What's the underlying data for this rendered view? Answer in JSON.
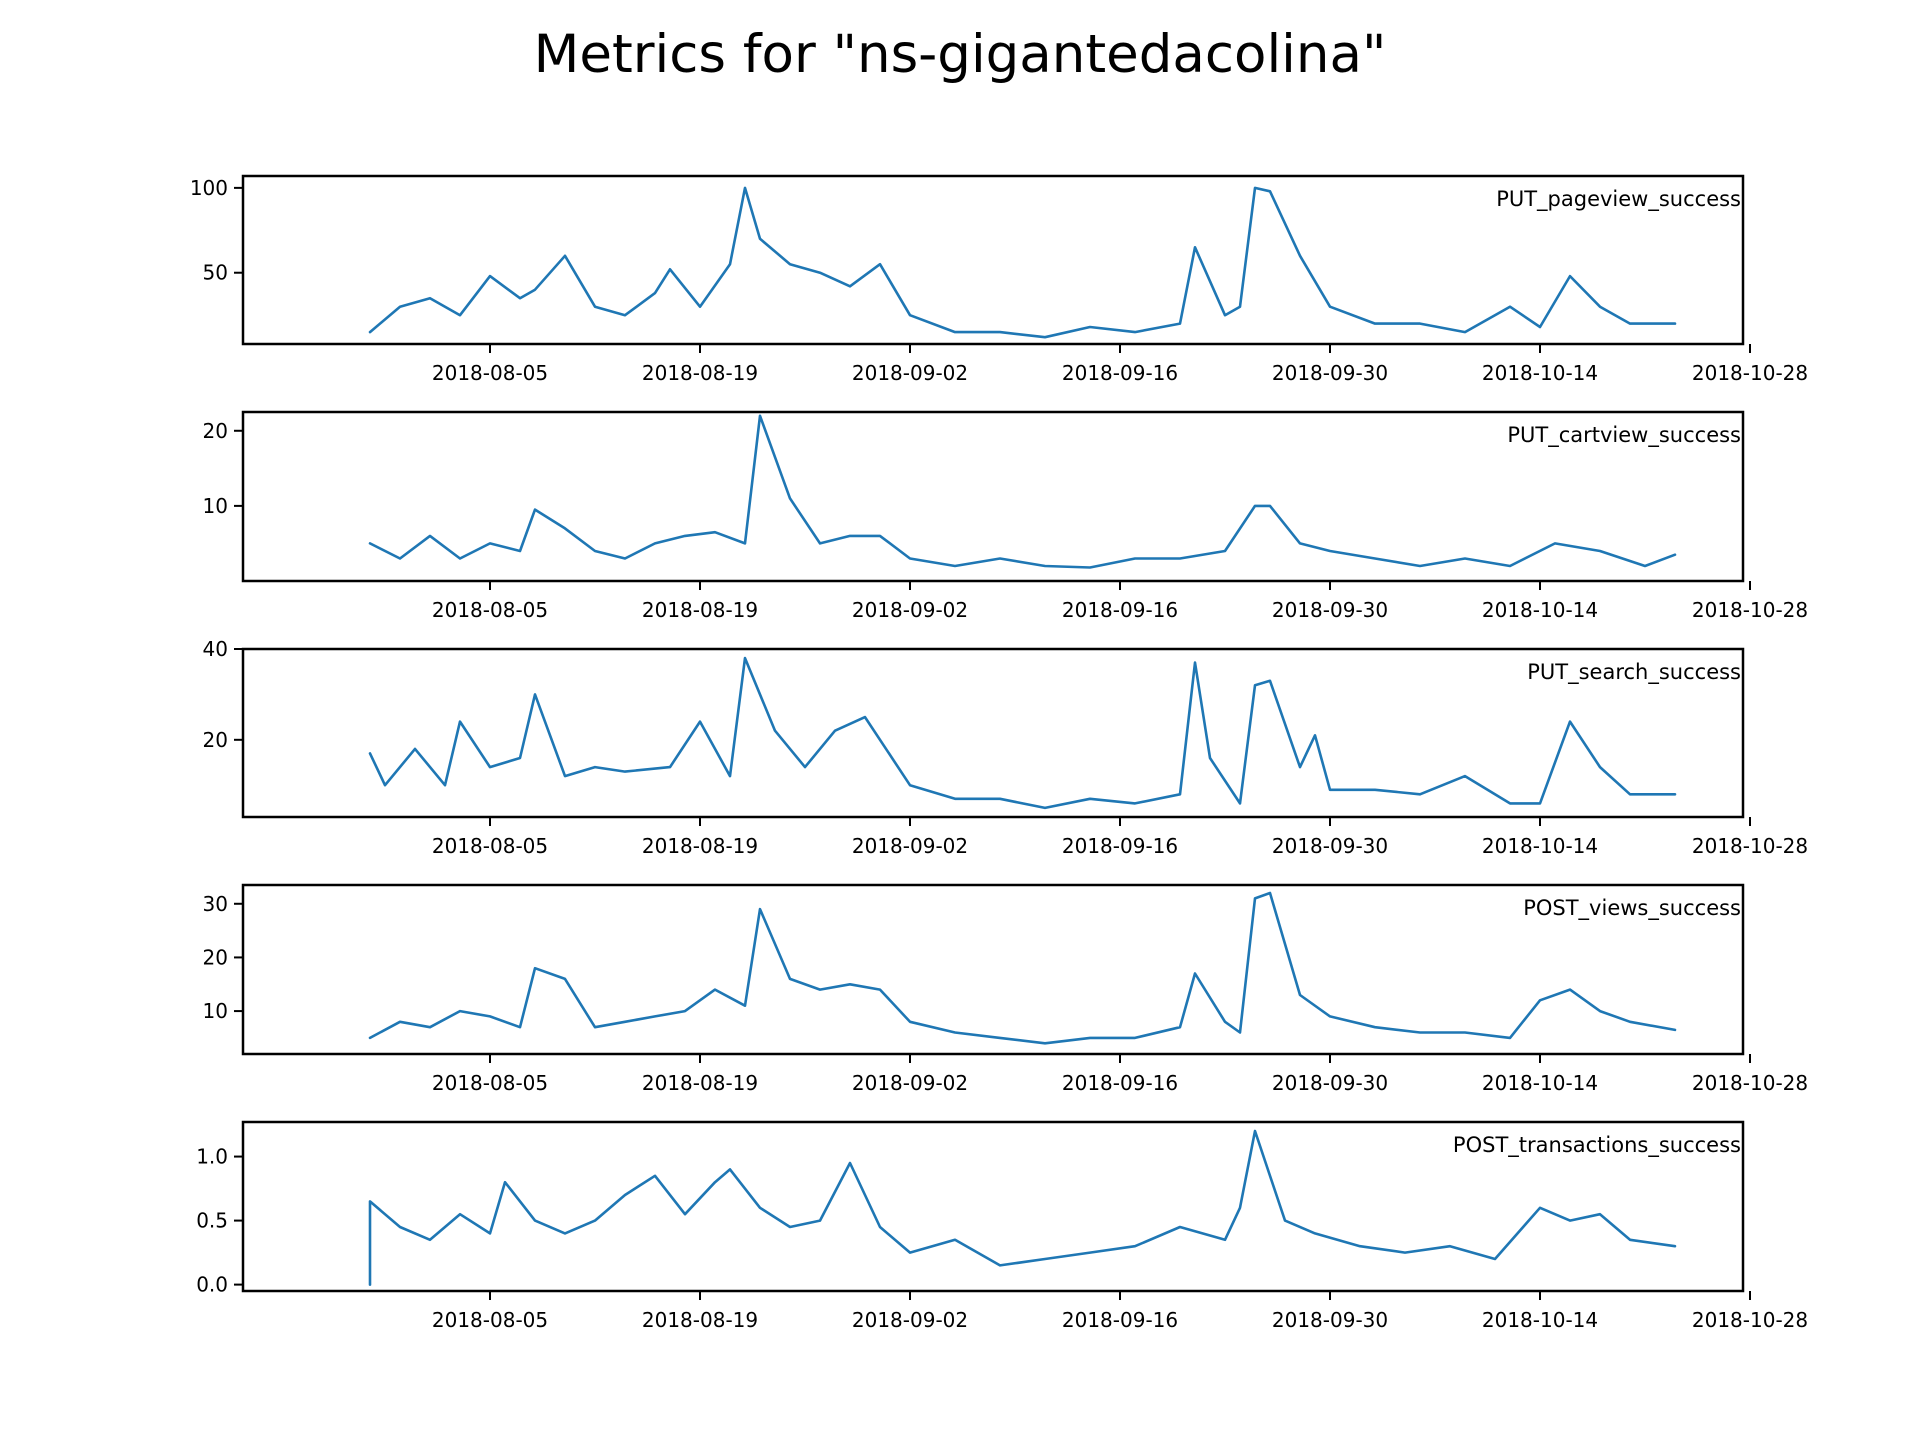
{
  "title": "Metrics for \"ns-gigantedacolina\"",
  "colors": {
    "series": "#1f77b4",
    "axis": "#000000",
    "background": "#ffffff"
  },
  "chart_data": {
    "type": "line",
    "layout": "stacked-subplots",
    "grid": false,
    "x_range": [
      "2018-07-24",
      "2018-10-23"
    ],
    "x_ticks": [
      "2018-08-05",
      "2018-08-19",
      "2018-09-02",
      "2018-09-16",
      "2018-09-30",
      "2018-10-14",
      "2018-10-28"
    ],
    "x_tick_labels": [
      "2018-08-05",
      "2018-08-19",
      "2018-09-02",
      "2018-09-16",
      "2018-09-30",
      "2018-10-14",
      "2018-10-28"
    ],
    "panels": [
      {
        "name": "PUT_pageview_success",
        "y_ticks": [
          50,
          100
        ],
        "y_tick_labels": [
          "50",
          "100"
        ],
        "x": [
          "2018-07-28",
          "2018-07-30",
          "2018-08-01",
          "2018-08-03",
          "2018-08-05",
          "2018-08-07",
          "2018-08-08",
          "2018-08-10",
          "2018-08-12",
          "2018-08-14",
          "2018-08-16",
          "2018-08-17",
          "2018-08-19",
          "2018-08-21",
          "2018-08-22",
          "2018-08-23",
          "2018-08-25",
          "2018-08-27",
          "2018-08-29",
          "2018-08-31",
          "2018-09-02",
          "2018-09-05",
          "2018-09-08",
          "2018-09-11",
          "2018-09-14",
          "2018-09-17",
          "2018-09-20",
          "2018-09-21",
          "2018-09-23",
          "2018-09-24",
          "2018-09-25",
          "2018-09-26",
          "2018-09-28",
          "2018-09-30",
          "2018-10-03",
          "2018-10-06",
          "2018-10-09",
          "2018-10-12",
          "2018-10-14",
          "2018-10-16",
          "2018-10-18",
          "2018-10-20",
          "2018-10-23"
        ],
        "values": [
          15,
          30,
          35,
          25,
          48,
          35,
          40,
          60,
          30,
          25,
          38,
          52,
          30,
          55,
          100,
          70,
          55,
          50,
          42,
          55,
          25,
          15,
          15,
          12,
          18,
          15,
          20,
          65,
          25,
          30,
          100,
          98,
          60,
          30,
          20,
          20,
          15,
          30,
          18,
          48,
          30,
          20,
          20
        ]
      },
      {
        "name": "PUT_cartview_success",
        "y_ticks": [
          10,
          20
        ],
        "y_tick_labels": [
          "10",
          "20"
        ],
        "x": [
          "2018-07-28",
          "2018-07-30",
          "2018-08-01",
          "2018-08-03",
          "2018-08-05",
          "2018-08-07",
          "2018-08-08",
          "2018-08-10",
          "2018-08-12",
          "2018-08-14",
          "2018-08-16",
          "2018-08-18",
          "2018-08-20",
          "2018-08-22",
          "2018-08-23",
          "2018-08-25",
          "2018-08-27",
          "2018-08-29",
          "2018-08-31",
          "2018-09-02",
          "2018-09-05",
          "2018-09-08",
          "2018-09-11",
          "2018-09-14",
          "2018-09-17",
          "2018-09-20",
          "2018-09-23",
          "2018-09-25",
          "2018-09-26",
          "2018-09-28",
          "2018-09-30",
          "2018-10-03",
          "2018-10-06",
          "2018-10-09",
          "2018-10-12",
          "2018-10-15",
          "2018-10-18",
          "2018-10-21",
          "2018-10-23"
        ],
        "values": [
          5,
          3,
          6,
          3,
          5,
          4,
          9.5,
          7,
          4,
          3,
          5,
          6,
          6.5,
          5,
          22,
          11,
          5,
          6,
          6,
          3,
          2,
          3,
          2,
          1.8,
          3,
          3,
          4,
          10,
          10,
          5,
          4,
          3,
          2,
          3,
          2,
          5,
          4,
          2,
          3.5
        ]
      },
      {
        "name": "PUT_search_success",
        "y_ticks": [
          20,
          40
        ],
        "y_tick_labels": [
          "20",
          "40"
        ],
        "x": [
          "2018-07-28",
          "2018-07-29",
          "2018-07-31",
          "2018-08-02",
          "2018-08-03",
          "2018-08-05",
          "2018-08-07",
          "2018-08-08",
          "2018-08-10",
          "2018-08-12",
          "2018-08-14",
          "2018-08-17",
          "2018-08-19",
          "2018-08-21",
          "2018-08-22",
          "2018-08-24",
          "2018-08-26",
          "2018-08-28",
          "2018-08-30",
          "2018-09-02",
          "2018-09-05",
          "2018-09-08",
          "2018-09-11",
          "2018-09-14",
          "2018-09-17",
          "2018-09-20",
          "2018-09-21",
          "2018-09-22",
          "2018-09-24",
          "2018-09-25",
          "2018-09-26",
          "2018-09-28",
          "2018-09-29",
          "2018-09-30",
          "2018-10-03",
          "2018-10-06",
          "2018-10-09",
          "2018-10-12",
          "2018-10-14",
          "2018-10-16",
          "2018-10-18",
          "2018-10-20",
          "2018-10-23"
        ],
        "values": [
          17,
          10,
          18,
          10,
          24,
          14,
          16,
          30,
          12,
          14,
          13,
          14,
          24,
          12,
          38,
          22,
          14,
          22,
          25,
          10,
          7,
          7,
          5,
          7,
          6,
          8,
          37,
          16,
          6,
          32,
          33,
          14,
          21,
          9,
          9,
          8,
          12,
          6,
          6,
          24,
          14,
          8,
          8
        ]
      },
      {
        "name": "POST_views_success",
        "y_ticks": [
          10,
          20,
          30
        ],
        "y_tick_labels": [
          "10",
          "20",
          "30"
        ],
        "x": [
          "2018-07-28",
          "2018-07-30",
          "2018-08-01",
          "2018-08-03",
          "2018-08-05",
          "2018-08-07",
          "2018-08-08",
          "2018-08-10",
          "2018-08-12",
          "2018-08-14",
          "2018-08-16",
          "2018-08-18",
          "2018-08-20",
          "2018-08-22",
          "2018-08-23",
          "2018-08-25",
          "2018-08-27",
          "2018-08-29",
          "2018-08-31",
          "2018-09-02",
          "2018-09-05",
          "2018-09-08",
          "2018-09-11",
          "2018-09-14",
          "2018-09-17",
          "2018-09-20",
          "2018-09-21",
          "2018-09-23",
          "2018-09-24",
          "2018-09-25",
          "2018-09-26",
          "2018-09-28",
          "2018-09-30",
          "2018-10-03",
          "2018-10-06",
          "2018-10-09",
          "2018-10-12",
          "2018-10-14",
          "2018-10-16",
          "2018-10-18",
          "2018-10-20",
          "2018-10-23"
        ],
        "values": [
          5,
          8,
          7,
          10,
          9,
          7,
          18,
          16,
          7,
          8,
          9,
          10,
          14,
          11,
          29,
          16,
          14,
          15,
          14,
          8,
          6,
          5,
          4,
          5,
          5,
          7,
          17,
          8,
          6,
          31,
          32,
          13,
          9,
          7,
          6,
          6,
          5,
          12,
          14,
          10,
          8,
          6.5
        ]
      },
      {
        "name": "POST_transactions_success",
        "y_ticks": [
          0.0,
          0.5,
          1.0
        ],
        "y_tick_labels": [
          "0.0",
          "0.5",
          "1.0"
        ],
        "x": [
          "2018-07-28",
          "2018-07-28",
          "2018-07-30",
          "2018-08-01",
          "2018-08-03",
          "2018-08-05",
          "2018-08-06",
          "2018-08-08",
          "2018-08-10",
          "2018-08-12",
          "2018-08-14",
          "2018-08-16",
          "2018-08-18",
          "2018-08-20",
          "2018-08-21",
          "2018-08-23",
          "2018-08-25",
          "2018-08-27",
          "2018-08-29",
          "2018-08-31",
          "2018-09-02",
          "2018-09-05",
          "2018-09-08",
          "2018-09-11",
          "2018-09-14",
          "2018-09-17",
          "2018-09-20",
          "2018-09-23",
          "2018-09-24",
          "2018-09-25",
          "2018-09-27",
          "2018-09-29",
          "2018-10-02",
          "2018-10-05",
          "2018-10-08",
          "2018-10-11",
          "2018-10-14",
          "2018-10-16",
          "2018-10-18",
          "2018-10-20",
          "2018-10-23"
        ],
        "values": [
          0.0,
          0.65,
          0.45,
          0.35,
          0.55,
          0.4,
          0.8,
          0.5,
          0.4,
          0.5,
          0.7,
          0.85,
          0.55,
          0.8,
          0.9,
          0.6,
          0.45,
          0.5,
          0.95,
          0.45,
          0.25,
          0.35,
          0.15,
          0.2,
          0.25,
          0.3,
          0.45,
          0.35,
          0.6,
          1.2,
          0.5,
          0.4,
          0.3,
          0.25,
          0.3,
          0.2,
          0.6,
          0.5,
          0.55,
          0.35,
          0.3
        ]
      }
    ]
  }
}
